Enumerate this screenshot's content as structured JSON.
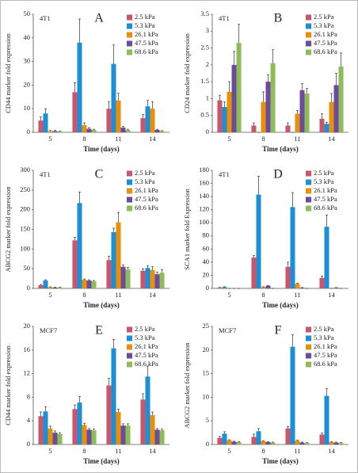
{
  "chart_data": [
    {
      "type": "bar",
      "title": "A",
      "annotation": "4T1",
      "ylabel": "CD44 marker fold expression",
      "xlabel": "Time (days)",
      "categories": [
        "5",
        "8",
        "11",
        "14"
      ],
      "ylim": [
        0,
        50
      ],
      "yticks": [
        0,
        10,
        20,
        30,
        40,
        50
      ],
      "series": [
        {
          "name": "2.5 kPa",
          "color": "#c9566a",
          "values": [
            5,
            17,
            10,
            6
          ],
          "errors": [
            1.5,
            4,
            3,
            1.5
          ]
        },
        {
          "name": "5.3 kPa",
          "color": "#1d8fd6",
          "values": [
            8,
            38,
            29,
            11
          ],
          "errors": [
            2,
            10,
            8,
            2.5
          ]
        },
        {
          "name": "26.1 kPa",
          "color": "#e8900c",
          "values": [
            0.5,
            3,
            13.5,
            10
          ],
          "errors": [
            0.3,
            1,
            3,
            3
          ]
        },
        {
          "name": "47.5 kPa",
          "color": "#6b4c9a",
          "values": [
            0.5,
            1.5,
            2,
            1
          ],
          "errors": [
            0.3,
            0.5,
            0.5,
            0.3
          ]
        },
        {
          "name": "68.6 kPa",
          "color": "#8fbc5a",
          "values": [
            0.3,
            1,
            1,
            0.5
          ],
          "errors": [
            0.2,
            0.3,
            0.3,
            0.2
          ]
        }
      ]
    },
    {
      "type": "bar",
      "title": "B",
      "annotation": "4T1",
      "ylabel": "CD24 marker fold expression",
      "xlabel": "Time (days)",
      "categories": [
        "5",
        "8",
        "11",
        "14"
      ],
      "ylim": [
        0,
        3.5
      ],
      "yticks": [
        0,
        0.5,
        1,
        1.5,
        2,
        2.5,
        3,
        3.5
      ],
      "series": [
        {
          "name": "2.5 kPa",
          "color": "#c9566a",
          "values": [
            0.95,
            0.2,
            0.2,
            0.4
          ],
          "errors": [
            0.15,
            0.08,
            0.08,
            0.15
          ]
        },
        {
          "name": "5.3 kPa",
          "color": "#1d8fd6",
          "values": [
            0.75,
            0,
            0,
            0.25
          ],
          "errors": [
            0.15,
            0,
            0,
            0.05
          ]
        },
        {
          "name": "26.1 kPa",
          "color": "#e8900c",
          "values": [
            1.2,
            0.9,
            0.55,
            0.9
          ],
          "errors": [
            0.3,
            0.3,
            0.1,
            0.25
          ]
        },
        {
          "name": "47.5 kPa",
          "color": "#6b4c9a",
          "values": [
            2,
            1.5,
            1.25,
            1.4
          ],
          "errors": [
            0.4,
            0.2,
            0.2,
            0.35
          ]
        },
        {
          "name": "68.6 kPa",
          "color": "#8fbc5a",
          "values": [
            2.65,
            2.05,
            1.15,
            1.95
          ],
          "errors": [
            0.55,
            0.4,
            0.15,
            0.4
          ]
        }
      ]
    },
    {
      "type": "bar",
      "title": "C",
      "annotation": "4T1",
      "ylabel": "ABCG2 marker fold expression",
      "xlabel": "Time (days)",
      "categories": [
        "5",
        "8",
        "11",
        "14"
      ],
      "ylim": [
        0,
        300
      ],
      "yticks": [
        0,
        50,
        100,
        150,
        200,
        250,
        300
      ],
      "series": [
        {
          "name": "2.5 kPa",
          "color": "#c9566a",
          "values": [
            8,
            122,
            72,
            45
          ],
          "errors": [
            2,
            8,
            10,
            5
          ]
        },
        {
          "name": "5.3 kPa",
          "color": "#1d8fd6",
          "values": [
            20,
            217,
            143,
            52
          ],
          "errors": [
            2,
            28,
            10,
            5
          ]
        },
        {
          "name": "26.1 kPa",
          "color": "#e8900c",
          "values": [
            3,
            22,
            168,
            47
          ],
          "errors": [
            1,
            2,
            25,
            8
          ]
        },
        {
          "name": "47.5 kPa",
          "color": "#6b4c9a",
          "values": [
            2,
            20,
            55,
            36
          ],
          "errors": [
            1,
            2,
            5,
            5
          ]
        },
        {
          "name": "68.6 kPa",
          "color": "#8fbc5a",
          "values": [
            2,
            18,
            48,
            40
          ],
          "errors": [
            1,
            2,
            5,
            8
          ]
        }
      ]
    },
    {
      "type": "bar",
      "title": "D",
      "annotation": "4T1",
      "ylabel": "SCA1 marker fold Expression",
      "xlabel": "Time (days)",
      "categories": [
        "5",
        "8",
        "11",
        "14"
      ],
      "ylim": [
        0,
        180
      ],
      "yticks": [
        0,
        20,
        40,
        60,
        80,
        100,
        120,
        140,
        160,
        180
      ],
      "series": [
        {
          "name": "2.5 kPa",
          "color": "#c9566a",
          "values": [
            1,
            47,
            33,
            16
          ],
          "errors": [
            0.5,
            3,
            7,
            3
          ]
        },
        {
          "name": "5.3 kPa",
          "color": "#1d8fd6",
          "values": [
            2,
            143,
            124,
            94
          ],
          "errors": [
            0.5,
            28,
            22,
            18
          ]
        },
        {
          "name": "26.1 kPa",
          "color": "#e8900c",
          "values": [
            0,
            2,
            7,
            0
          ],
          "errors": [
            0,
            0.5,
            1,
            0
          ]
        },
        {
          "name": "47.5 kPa",
          "color": "#6b4c9a",
          "values": [
            0,
            4,
            1,
            1
          ],
          "errors": [
            0,
            0.5,
            0.3,
            0.3
          ]
        },
        {
          "name": "68.6 kPa",
          "color": "#8fbc5a",
          "values": [
            0,
            0,
            0,
            0
          ],
          "errors": [
            0,
            0,
            0,
            0
          ]
        }
      ]
    },
    {
      "type": "bar",
      "title": "E",
      "annotation": "MCF7",
      "ylabel": "CD44 marker fold expression",
      "xlabel": "Time (days)",
      "categories": [
        "5",
        "8",
        "11",
        "14"
      ],
      "ylim": [
        0,
        20
      ],
      "yticks": [
        0,
        4,
        8,
        12,
        16,
        20
      ],
      "series": [
        {
          "name": "2.5 kPa",
          "color": "#c9566a",
          "values": [
            4.8,
            6,
            10,
            7.6
          ],
          "errors": [
            0.7,
            0.7,
            1.2,
            1
          ]
        },
        {
          "name": "5.3 kPa",
          "color": "#1d8fd6",
          "values": [
            5.6,
            7.1,
            16.3,
            11.5
          ],
          "errors": [
            0.8,
            1,
            1.5,
            1.8
          ]
        },
        {
          "name": "26.1 kPa",
          "color": "#e8900c",
          "values": [
            2.7,
            3.3,
            5.5,
            5
          ],
          "errors": [
            0.4,
            0.3,
            0.5,
            0.5
          ]
        },
        {
          "name": "47.5 kPa",
          "color": "#6b4c9a",
          "values": [
            2,
            2.5,
            3.2,
            2.5
          ],
          "errors": [
            0.3,
            0.2,
            0.3,
            0.2
          ]
        },
        {
          "name": "68.6 kPa",
          "color": "#8fbc5a",
          "values": [
            1.8,
            2.4,
            3.2,
            2.4
          ],
          "errors": [
            0.2,
            0.2,
            0.3,
            0.2
          ]
        }
      ]
    },
    {
      "type": "bar",
      "title": "F",
      "annotation": "MCF7",
      "ylabel": "ABCG2 marker fold expression",
      "xlabel": "Time (days)",
      "categories": [
        "5",
        "8",
        "11",
        "14"
      ],
      "ylim": [
        0,
        25
      ],
      "yticks": [
        0,
        5,
        10,
        15,
        20,
        25
      ],
      "series": [
        {
          "name": "2.5 kPa",
          "color": "#c9566a",
          "values": [
            1.4,
            1.6,
            3.4,
            2.1
          ],
          "errors": [
            0.3,
            0.6,
            0.4,
            0.3
          ]
        },
        {
          "name": "5.3 kPa",
          "color": "#1d8fd6",
          "values": [
            2.3,
            2.8,
            20.7,
            10.3
          ],
          "errors": [
            0.4,
            0.6,
            2.5,
            1.5
          ]
        },
        {
          "name": "26.1 kPa",
          "color": "#e8900c",
          "values": [
            0.9,
            0.7,
            0.8,
            0.5
          ],
          "errors": [
            0.1,
            0.1,
            0.1,
            0.1
          ]
        },
        {
          "name": "47.5 kPa",
          "color": "#6b4c9a",
          "values": [
            0.6,
            0.5,
            0.4,
            0.4
          ],
          "errors": [
            0.1,
            0.1,
            0.1,
            0.1
          ]
        },
        {
          "name": "68.6 kPa",
          "color": "#8fbc5a",
          "values": [
            0.5,
            0.4,
            0.3,
            0.3
          ],
          "errors": [
            0.1,
            0.1,
            0.1,
            0.1
          ]
        }
      ]
    }
  ]
}
